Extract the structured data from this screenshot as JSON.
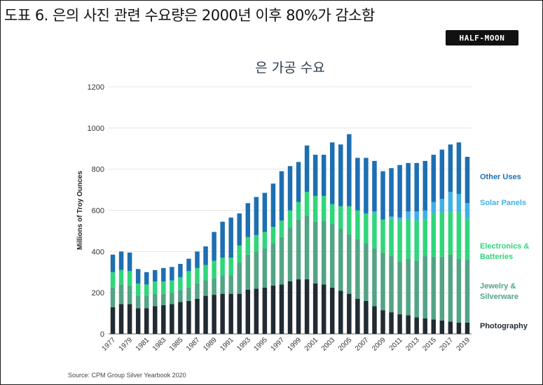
{
  "figure_title": "도표 6. 은의 사진 관련 수요량은 2000년 이후 80%가 감소함",
  "logo_text": "HALF-MOON",
  "source": "Source: CPM Group Silver Yearbook 2020",
  "colors": {
    "photography": "#222b33",
    "jewelry": "#52a485",
    "electronics": "#2fd67a",
    "solar": "#3fb1e5",
    "other": "#1d6fb2"
  },
  "chart_data": {
    "type": "bar",
    "stacked": true,
    "title": "은 가공 수요",
    "xlabel": "",
    "ylabel": "Millions of Troy Ounces",
    "ylim": [
      0,
      1200
    ],
    "yticks": [
      0,
      200,
      400,
      600,
      800,
      1000,
      1200
    ],
    "grid": true,
    "legend_placement": "right",
    "categories": [
      "1977",
      "1978",
      "1979",
      "1980",
      "1981",
      "1982",
      "1983",
      "1984",
      "1985",
      "1986",
      "1987",
      "1988",
      "1989",
      "1990",
      "1991",
      "1992",
      "1993",
      "1994",
      "1995",
      "1996",
      "1997",
      "1998",
      "1999",
      "2000",
      "2001",
      "2002",
      "2003",
      "2004",
      "2005",
      "2006",
      "2007",
      "2008",
      "2009",
      "2010",
      "2011",
      "2012",
      "2013",
      "2014",
      "2015",
      "2016",
      "2017",
      "2018",
      "2019"
    ],
    "xtick_labels": [
      "1977",
      "1979",
      "1981",
      "1983",
      "1985",
      "1987",
      "1989",
      "1991",
      "1993",
      "1995",
      "1997",
      "1999",
      "2001",
      "2003",
      "2005",
      "2007",
      "2009",
      "2011",
      "2013",
      "2015",
      "2017",
      "2019"
    ],
    "series": [
      {
        "name": "Photography",
        "key": "photography",
        "values": [
          130,
          145,
          145,
          125,
          125,
          135,
          140,
          145,
          155,
          160,
          170,
          185,
          190,
          195,
          195,
          195,
          215,
          220,
          225,
          235,
          240,
          255,
          265,
          265,
          245,
          240,
          225,
          210,
          195,
          170,
          160,
          135,
          115,
          105,
          95,
          90,
          80,
          75,
          70,
          65,
          60,
          55,
          55
        ]
      },
      {
        "name": "Jewelry & Silverware",
        "key": "jewelry",
        "values": [
          95,
          95,
          90,
          60,
          60,
          60,
          55,
          55,
          60,
          65,
          75,
          75,
          80,
          90,
          90,
          150,
          170,
          180,
          190,
          205,
          230,
          260,
          290,
          310,
          300,
          310,
          310,
          300,
          290,
          290,
          280,
          280,
          280,
          275,
          255,
          275,
          275,
          305,
          305,
          310,
          325,
          310,
          305
        ]
      },
      {
        "name": "Electronics & Batteries",
        "key": "electronics",
        "values": [
          75,
          70,
          70,
          60,
          55,
          60,
          60,
          60,
          60,
          80,
          75,
          75,
          85,
          85,
          85,
          85,
          85,
          80,
          80,
          80,
          80,
          85,
          85,
          115,
          125,
          120,
          95,
          110,
          135,
          140,
          145,
          170,
          160,
          180,
          200,
          190,
          195,
          175,
          210,
          215,
          210,
          225,
          200
        ]
      },
      {
        "name": "Solar Panels",
        "key": "solar",
        "values": [
          0,
          0,
          0,
          0,
          0,
          0,
          0,
          0,
          0,
          0,
          0,
          0,
          0,
          0,
          0,
          0,
          0,
          0,
          0,
          0,
          0,
          0,
          0,
          0,
          0,
          0,
          0,
          0,
          0,
          0,
          0,
          10,
          0,
          10,
          15,
          40,
          45,
          45,
          55,
          65,
          95,
          90,
          75
        ]
      },
      {
        "name": "Other Uses",
        "key": "other",
        "values": [
          85,
          90,
          90,
          70,
          60,
          55,
          65,
          65,
          65,
          60,
          80,
          90,
          140,
          175,
          195,
          155,
          165,
          185,
          190,
          210,
          240,
          215,
          195,
          225,
          200,
          200,
          300,
          300,
          350,
          255,
          270,
          245,
          235,
          235,
          255,
          235,
          235,
          240,
          230,
          240,
          230,
          250,
          225
        ]
      }
    ],
    "legend": [
      {
        "key": "other",
        "lines": [
          "Other Uses"
        ]
      },
      {
        "key": "solar",
        "lines": [
          "Solar Panels"
        ]
      },
      {
        "key": "electronics",
        "lines": [
          "Electronics &",
          "Batteries"
        ]
      },
      {
        "key": "jewelry",
        "lines": [
          "Jewelry &",
          "Silverware"
        ]
      },
      {
        "key": "photography",
        "lines": [
          "Photography"
        ]
      }
    ]
  }
}
